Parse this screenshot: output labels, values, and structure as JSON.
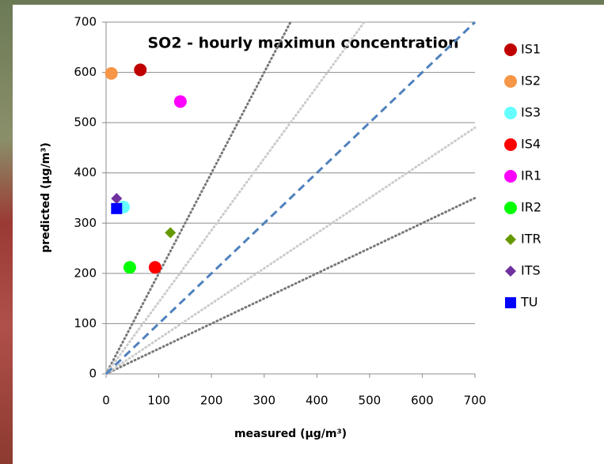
{
  "chart_data": {
    "type": "scatter",
    "title": "SO2 - hourly maximun concentration",
    "x_label": "measured (µg/m³)",
    "y_label": "predicted (µg/m³)",
    "xlim": [
      0,
      700
    ],
    "ylim": [
      0,
      700
    ],
    "xticks": [
      0,
      100,
      200,
      300,
      400,
      500,
      600,
      700
    ],
    "yticks": [
      0,
      100,
      200,
      300,
      400,
      500,
      600,
      700
    ],
    "grid": true,
    "legend": "right",
    "series": [
      {
        "name": "IS1",
        "color": "#c00000",
        "marker": "circle",
        "x": [
          65
        ],
        "values": [
          605
        ]
      },
      {
        "name": "IS2",
        "color": "#f79646",
        "marker": "circle",
        "x": [
          10
        ],
        "values": [
          598
        ]
      },
      {
        "name": "IS3",
        "color": "#66ffff",
        "marker": "circle",
        "x": [
          33
        ],
        "values": [
          332
        ]
      },
      {
        "name": "IS4",
        "color": "#ff0000",
        "marker": "circle",
        "x": [
          93
        ],
        "values": [
          212
        ]
      },
      {
        "name": "IR1",
        "color": "#ff00ff",
        "marker": "circle",
        "x": [
          141
        ],
        "values": [
          542
        ]
      },
      {
        "name": "IR2",
        "color": "#00ff00",
        "marker": "circle",
        "x": [
          45
        ],
        "values": [
          212
        ]
      },
      {
        "name": "ITR",
        "color": "#669900",
        "marker": "diamond",
        "x": [
          122
        ],
        "values": [
          281
        ]
      },
      {
        "name": "ITS",
        "color": "#7030a0",
        "marker": "diamond",
        "x": [
          20
        ],
        "values": [
          349
        ]
      },
      {
        "name": "TU",
        "color": "#0000ff",
        "marker": "square",
        "x": [
          20
        ],
        "values": [
          329
        ]
      }
    ]
  }
}
